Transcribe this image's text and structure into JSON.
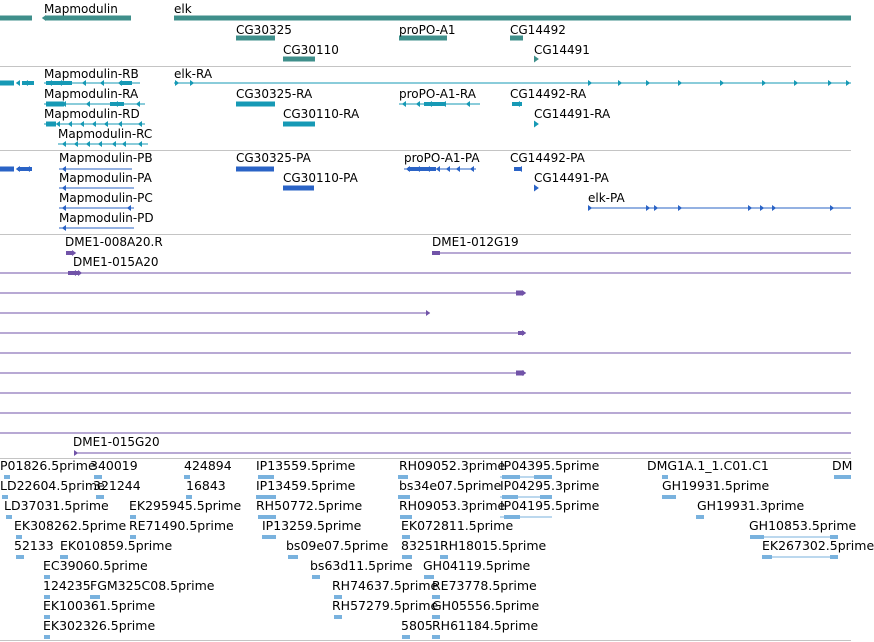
{
  "colors": {
    "gene": "#3f8f8b",
    "rna_mod": "#1699b5",
    "protein": "#2a63c6",
    "bac": "#7153a8",
    "est": "#79b2de",
    "separator": "#c4c4c4"
  },
  "tracks": {
    "genes": [
      {
        "name": "Mapmodulin",
        "shape": "left-arrow-bar"
      },
      {
        "name": "elk",
        "shape": "bar"
      },
      {
        "name": "CG30325",
        "shape": "bar"
      },
      {
        "name": "CG30110",
        "shape": "bar"
      },
      {
        "name": "proPO-A1",
        "shape": "bar"
      },
      {
        "name": "CG14492",
        "shape": "bar"
      },
      {
        "name": "CG14491",
        "shape": "right-arrow"
      }
    ],
    "transcripts": [
      {
        "name": "Mapmodulin-RB"
      },
      {
        "name": "elk-RA"
      },
      {
        "name": "Mapmodulin-RA"
      },
      {
        "name": "CG30325-RA"
      },
      {
        "name": "proPO-A1-RA"
      },
      {
        "name": "CG14492-RA"
      },
      {
        "name": "Mapmodulin-RD"
      },
      {
        "name": "CG30110-RA"
      },
      {
        "name": "CG14491-RA"
      },
      {
        "name": "Mapmodulin-RC"
      }
    ],
    "proteins": [
      {
        "name": "Mapmodulin-PB"
      },
      {
        "name": "CG30325-PA"
      },
      {
        "name": "proPO-A1-PA"
      },
      {
        "name": "CG14492-PA"
      },
      {
        "name": "Mapmodulin-PA"
      },
      {
        "name": "CG30110-PA"
      },
      {
        "name": "CG14491-PA"
      },
      {
        "name": "Mapmodulin-PC"
      },
      {
        "name": "elk-PA"
      },
      {
        "name": "Mapmodulin-PD"
      }
    ],
    "bacs": [
      {
        "name": "DME1-008A20.R"
      },
      {
        "name": "DME1-012G19"
      },
      {
        "name": "DME1-015A20"
      },
      {
        "name": "DME1-015G20"
      }
    ],
    "ests": [
      "P01826.5prime",
      "340019",
      "424894",
      "IP13559.5prime",
      "RH09052.3prime",
      "IP04395.5prime",
      "DMG1A.1_1.C01.C1",
      "DM",
      "LD22604.5prime",
      "321244",
      "16843",
      "IP13459.5prime",
      "bs34e07.5prime",
      "IP04295.3prime",
      "GH19931.5prime",
      "LD37031.5prime",
      "EK295945.5prime",
      "RH50772.5prime",
      "RH09053.3prime",
      "IP04195.5prime",
      "GH19931.3prime",
      "EK308262.5prime",
      "RE71490.5prime",
      "IP13259.5prime",
      "EK072811.5prime",
      "GH10853.5prime",
      "52133",
      "EK010859.5prime",
      "bs09e07.5prime",
      "83251",
      "RH18015.5prime",
      "EK267302.5prime",
      "EC39060.5prime",
      "bs63d11.5prime",
      "GH04119.5prime",
      "124235",
      "FGM325C08.5prime",
      "RH74637.5prime",
      "RE73778.5prime",
      "EK100361.5prime",
      "RH57279.5prime",
      "GH05556.5prime",
      "EK302326.5prime",
      "5805",
      "RH61184.5prime"
    ]
  }
}
